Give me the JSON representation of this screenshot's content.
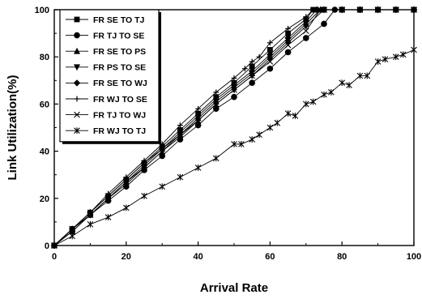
{
  "chart_data": {
    "type": "line",
    "title": "",
    "xlabel": "Arrival Rate",
    "ylabel": "Link Utilization(%)",
    "xlim": [
      0,
      100
    ],
    "ylim": [
      0,
      100
    ],
    "xticks": [
      0,
      20,
      40,
      60,
      80,
      100
    ],
    "yticks": [
      0,
      20,
      40,
      60,
      80,
      100
    ],
    "grid": false,
    "legend_position": "top-left",
    "series": [
      {
        "name": "FR SE TO TJ",
        "marker": "square",
        "x": [
          0,
          5,
          10,
          15,
          20,
          25,
          30,
          35,
          40,
          45,
          50,
          55,
          60,
          65,
          70,
          72,
          75,
          80,
          85,
          90,
          95,
          100
        ],
        "y": [
          0,
          7,
          14,
          21,
          28,
          35,
          42,
          49,
          56,
          63,
          69,
          76,
          83,
          90,
          96,
          100,
          100,
          100,
          100,
          100,
          100,
          100
        ]
      },
      {
        "name": "FR TJ TO SE",
        "marker": "circle",
        "x": [
          0,
          5,
          10,
          15,
          20,
          25,
          30,
          35,
          40,
          45,
          50,
          55,
          60,
          65,
          70,
          75,
          78,
          80,
          85,
          90,
          95,
          100
        ],
        "y": [
          0,
          6,
          13,
          19,
          25,
          32,
          38,
          45,
          51,
          58,
          63,
          69,
          75,
          82,
          88,
          94,
          100,
          100,
          100,
          100,
          100,
          100
        ]
      },
      {
        "name": "FR SE TO PS",
        "marker": "triangle-up",
        "x": [
          0,
          5,
          10,
          15,
          20,
          25,
          30,
          35,
          40,
          45,
          50,
          55,
          60,
          65,
          70,
          74,
          75,
          80,
          85,
          90,
          95,
          100
        ],
        "y": [
          0,
          7,
          13,
          20,
          27,
          34,
          41,
          47,
          54,
          61,
          67,
          73,
          80,
          87,
          94,
          100,
          100,
          100,
          100,
          100,
          100,
          100
        ]
      },
      {
        "name": "FR PS TO SE",
        "marker": "triangle-down",
        "x": [
          0,
          5,
          10,
          15,
          20,
          25,
          30,
          35,
          40,
          45,
          50,
          55,
          60,
          65,
          70,
          75,
          80,
          85,
          90,
          95,
          100
        ],
        "y": [
          0,
          7,
          13,
          20,
          27,
          33,
          40,
          47,
          53,
          60,
          66,
          72,
          79,
          86,
          93,
          100,
          100,
          100,
          100,
          100,
          100
        ]
      },
      {
        "name": "FR SE TO WJ",
        "marker": "diamond",
        "x": [
          0,
          5,
          10,
          15,
          20,
          25,
          30,
          35,
          40,
          45,
          50,
          55,
          60,
          65,
          70,
          73,
          75,
          80,
          85,
          90,
          95,
          100
        ],
        "y": [
          0,
          7,
          14,
          21,
          28,
          35,
          41,
          48,
          55,
          62,
          68,
          74,
          81,
          88,
          95,
          100,
          100,
          100,
          100,
          100,
          100,
          100
        ]
      },
      {
        "name": "FR WJ TO SE",
        "marker": "plus",
        "x": [
          0,
          5,
          10,
          15,
          20,
          25,
          30,
          35,
          40,
          45,
          50,
          53,
          55,
          57,
          60,
          65,
          70,
          72,
          75,
          80,
          85,
          90,
          95,
          100
        ],
        "y": [
          0,
          7,
          14,
          22,
          29,
          36,
          43,
          51,
          58,
          65,
          71,
          75,
          78,
          80,
          86,
          92,
          97,
          100,
          100,
          100,
          100,
          100,
          100,
          100
        ]
      },
      {
        "name": "FR TJ TO WJ",
        "marker": "x",
        "x": [
          0,
          5,
          10,
          15,
          20,
          25,
          30,
          35,
          40,
          45,
          50,
          55,
          60,
          65,
          70,
          74,
          75,
          80,
          85,
          90,
          95,
          100
        ],
        "y": [
          0,
          6,
          13,
          20,
          26,
          33,
          40,
          46,
          53,
          60,
          66,
          72,
          78,
          85,
          91,
          100,
          100,
          100,
          100,
          100,
          100,
          100
        ]
      },
      {
        "name": "FR WJ TO TJ",
        "marker": "asterisk",
        "x": [
          0,
          5,
          10,
          15,
          20,
          25,
          30,
          35,
          40,
          45,
          50,
          52,
          55,
          57,
          60,
          62,
          65,
          67,
          70,
          72,
          75,
          77,
          80,
          82,
          85,
          87,
          90,
          92,
          95,
          97,
          100
        ],
        "y": [
          0,
          4,
          9,
          12,
          16,
          21,
          25,
          29,
          33,
          37,
          43,
          43,
          45,
          47,
          50,
          52,
          56,
          55,
          60,
          61,
          64,
          65,
          69,
          68,
          72,
          72,
          78,
          79,
          80,
          81,
          83
        ]
      }
    ]
  }
}
